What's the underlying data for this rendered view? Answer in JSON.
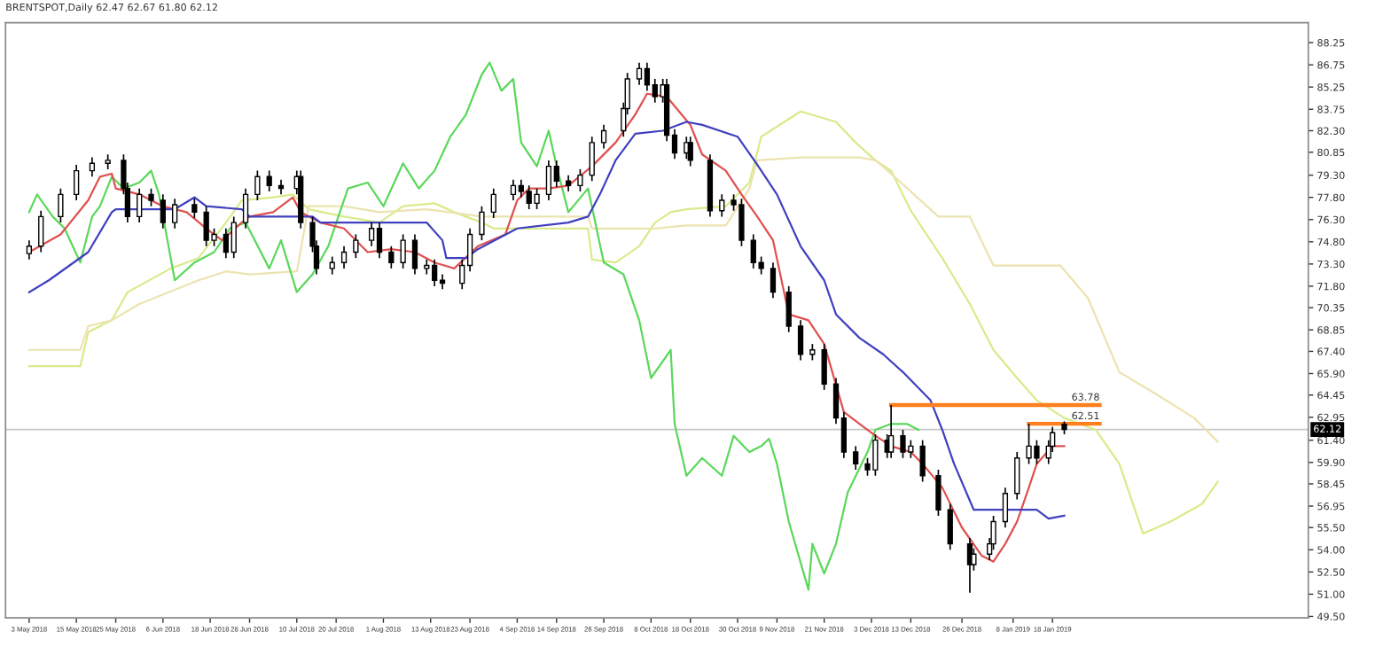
{
  "chart_data": {
    "type": "candlestick",
    "title": "BRENTSPOT,Daily 62.47 62.67 61.80 62.12",
    "x": [
      "2018-05-03",
      "2018-05-06",
      "2018-05-11",
      "2018-05-15",
      "2018-05-19",
      "2018-05-23",
      "2018-05-27",
      "2018-05-28",
      "2018-05-31",
      "2018-06-03",
      "2018-06-06",
      "2018-06-09",
      "2018-06-14",
      "2018-06-17",
      "2018-06-19",
      "2018-06-22",
      "2018-06-24",
      "2018-06-27",
      "2018-06-30",
      "2018-07-03",
      "2018-07-06",
      "2018-07-10",
      "2018-07-11",
      "2018-07-14",
      "2018-07-15",
      "2018-07-19",
      "2018-07-22",
      "2018-07-25",
      "2018-07-29",
      "2018-07-31",
      "2018-08-03",
      "2018-08-06",
      "2018-08-09",
      "2018-08-12",
      "2018-08-14",
      "2018-08-16",
      "2018-08-21",
      "2018-08-23",
      "2018-08-26",
      "2018-08-29",
      "2018-09-03",
      "2018-09-05",
      "2018-09-07",
      "2018-09-09",
      "2018-09-12",
      "2018-09-14",
      "2018-09-17",
      "2018-09-20",
      "2018-09-23",
      "2018-09-26",
      "2018-10-01",
      "2018-10-02",
      "2018-10-05",
      "2018-10-07",
      "2018-10-09",
      "2018-10-11",
      "2018-10-12",
      "2018-10-14",
      "2018-10-17",
      "2018-10-18",
      "2018-10-23",
      "2018-10-26",
      "2018-10-29",
      "2018-10-31",
      "2018-11-03",
      "2018-11-05",
      "2018-11-08",
      "2018-11-12",
      "2018-11-15",
      "2018-11-18",
      "2018-11-21",
      "2018-11-24",
      "2018-11-26",
      "2018-11-29",
      "2018-12-02",
      "2018-12-04",
      "2018-12-07",
      "2018-12-08",
      "2018-12-11",
      "2018-12-13",
      "2018-12-16",
      "2018-12-20",
      "2018-12-23",
      "2018-12-28",
      "2018-12-29",
      "2019-01-02",
      "2019-01-03",
      "2019-01-06",
      "2019-01-09",
      "2019-01-12",
      "2019-01-14",
      "2019-01-17",
      "2019-01-18",
      "2019-01-21"
    ],
    "ohlc": [
      [
        74.0,
        74.9,
        73.6,
        74.5
      ],
      [
        74.5,
        76.9,
        74.1,
        76.5
      ],
      [
        76.5,
        78.4,
        76.1,
        78.0
      ],
      [
        78.0,
        80.0,
        77.6,
        79.6
      ],
      [
        79.6,
        80.5,
        79.2,
        80.1
      ],
      [
        80.1,
        80.7,
        79.7,
        80.3
      ],
      [
        80.3,
        80.7,
        78.0,
        78.4
      ],
      [
        78.4,
        78.8,
        76.1,
        76.5
      ],
      [
        76.5,
        78.4,
        76.1,
        78.0
      ],
      [
        78.0,
        78.4,
        77.2,
        77.6
      ],
      [
        77.6,
        78.0,
        75.7,
        76.1
      ],
      [
        76.1,
        77.7,
        75.7,
        77.3
      ],
      [
        77.3,
        77.7,
        76.4,
        76.8
      ],
      [
        76.8,
        77.2,
        74.5,
        74.9
      ],
      [
        74.9,
        75.7,
        74.5,
        75.3
      ],
      [
        75.3,
        75.7,
        73.7,
        74.1
      ],
      [
        74.1,
        76.5,
        73.7,
        76.1
      ],
      [
        76.1,
        78.4,
        75.7,
        78.0
      ],
      [
        78.0,
        79.6,
        77.6,
        79.2
      ],
      [
        79.2,
        79.6,
        78.2,
        78.6
      ],
      [
        78.6,
        79.0,
        78.0,
        78.4
      ],
      [
        78.4,
        79.6,
        78.0,
        79.2
      ],
      [
        79.2,
        79.6,
        75.7,
        76.1
      ],
      [
        76.1,
        76.5,
        74.1,
        74.5
      ],
      [
        74.5,
        74.9,
        72.6,
        73.0
      ],
      [
        73.0,
        73.8,
        72.6,
        73.4
      ],
      [
        73.4,
        74.5,
        73.0,
        74.1
      ],
      [
        74.1,
        75.3,
        73.7,
        74.9
      ],
      [
        74.9,
        76.1,
        74.5,
        75.7
      ],
      [
        75.7,
        76.1,
        73.7,
        74.1
      ],
      [
        74.1,
        74.5,
        73.0,
        73.4
      ],
      [
        73.4,
        75.3,
        73.0,
        74.9
      ],
      [
        74.9,
        75.3,
        72.6,
        73.0
      ],
      [
        73.0,
        73.6,
        72.6,
        73.2
      ],
      [
        73.2,
        73.6,
        71.8,
        72.2
      ],
      [
        72.2,
        72.6,
        71.6,
        72.0
      ],
      [
        72.0,
        73.6,
        71.6,
        73.2
      ],
      [
        73.2,
        75.7,
        72.8,
        75.3
      ],
      [
        75.3,
        77.2,
        74.9,
        76.8
      ],
      [
        76.8,
        78.4,
        76.4,
        78.0
      ],
      [
        78.0,
        79.0,
        77.6,
        78.6
      ],
      [
        78.6,
        79.0,
        77.8,
        78.2
      ],
      [
        78.2,
        78.6,
        77.0,
        77.4
      ],
      [
        77.4,
        78.4,
        77.0,
        78.0
      ],
      [
        78.0,
        80.3,
        77.6,
        79.9
      ],
      [
        79.9,
        80.3,
        78.5,
        78.9
      ],
      [
        78.9,
        79.3,
        78.2,
        78.6
      ],
      [
        78.6,
        79.7,
        78.2,
        79.3
      ],
      [
        79.3,
        81.9,
        78.9,
        81.5
      ],
      [
        81.5,
        82.7,
        81.1,
        82.3
      ],
      [
        82.3,
        84.2,
        81.9,
        83.8
      ],
      [
        83.8,
        86.2,
        83.4,
        85.8
      ],
      [
        85.8,
        86.9,
        85.4,
        86.5
      ],
      [
        86.5,
        86.9,
        85.0,
        85.4
      ],
      [
        85.4,
        85.8,
        84.2,
        84.6
      ],
      [
        84.6,
        85.8,
        84.2,
        85.4
      ],
      [
        85.4,
        85.8,
        81.6,
        82.0
      ],
      [
        82.0,
        82.4,
        80.4,
        80.8
      ],
      [
        80.8,
        81.9,
        80.4,
        81.5
      ],
      [
        81.5,
        81.9,
        79.9,
        80.3
      ],
      [
        80.3,
        80.7,
        76.5,
        76.9
      ],
      [
        76.9,
        78.0,
        76.5,
        77.6
      ],
      [
        77.6,
        78.0,
        76.9,
        77.3
      ],
      [
        77.3,
        77.7,
        74.5,
        74.9
      ],
      [
        74.9,
        75.3,
        73.0,
        73.4
      ],
      [
        73.4,
        73.8,
        72.6,
        73.0
      ],
      [
        73.0,
        73.4,
        71.0,
        71.4
      ],
      [
        71.4,
        71.8,
        68.7,
        69.1
      ],
      [
        69.1,
        69.5,
        66.8,
        67.2
      ],
      [
        67.2,
        67.9,
        66.8,
        67.5
      ],
      [
        67.5,
        67.9,
        64.8,
        65.2
      ],
      [
        65.2,
        65.6,
        62.5,
        62.9
      ],
      [
        62.9,
        63.3,
        60.2,
        60.6
      ],
      [
        60.6,
        61.0,
        59.4,
        59.8
      ],
      [
        59.8,
        60.2,
        59.0,
        59.4
      ],
      [
        59.4,
        61.8,
        59.0,
        61.4
      ],
      [
        61.4,
        61.8,
        60.2,
        60.6
      ],
      [
        60.6,
        63.78,
        60.2,
        61.7
      ],
      [
        61.7,
        62.1,
        60.2,
        60.6
      ],
      [
        60.6,
        61.4,
        60.2,
        61.0
      ],
      [
        61.0,
        61.4,
        58.6,
        59.0
      ],
      [
        59.0,
        59.4,
        56.3,
        56.7
      ],
      [
        56.7,
        57.1,
        54.0,
        54.4
      ],
      [
        54.4,
        54.8,
        51.1,
        53.0
      ],
      [
        53.0,
        54.1,
        52.6,
        53.7
      ],
      [
        53.7,
        54.8,
        53.3,
        54.4
      ],
      [
        54.4,
        56.3,
        54.0,
        55.9
      ],
      [
        55.9,
        58.2,
        55.5,
        57.8
      ],
      [
        57.8,
        60.6,
        57.4,
        60.2
      ],
      [
        60.2,
        62.51,
        59.8,
        61.0
      ],
      [
        61.0,
        61.4,
        59.8,
        60.2
      ],
      [
        60.2,
        61.4,
        59.8,
        61.0
      ],
      [
        61.0,
        62.3,
        60.6,
        61.9
      ],
      [
        62.47,
        62.67,
        61.8,
        62.12
      ]
    ],
    "series": [
      {
        "type": "line",
        "color": "#d8eb8a",
        "x": [
          "2018-05-03",
          "2018-05-16",
          "2018-05-18",
          "2018-05-24",
          "2018-05-28",
          "2018-06-08",
          "2018-06-15",
          "2018-06-22",
          "2018-06-26",
          "2018-07-04",
          "2018-07-09",
          "2018-07-13",
          "2018-07-22",
          "2018-07-31",
          "2018-08-06",
          "2018-08-14",
          "2018-08-19",
          "2018-08-26",
          "2018-08-29",
          "2018-09-07",
          "2018-09-22",
          "2018-09-23",
          "2018-09-29",
          "2018-10-05",
          "2018-10-09",
          "2018-10-13",
          "2018-10-17",
          "2018-10-27",
          "2018-11-02",
          "2018-11-05",
          "2018-11-15",
          "2018-11-24",
          "2018-11-29",
          "2018-12-04",
          "2018-12-08",
          "2018-12-13",
          "2018-12-21",
          "2018-12-28",
          "2019-01-03",
          "2019-01-09",
          "2019-01-14",
          "2019-01-21",
          "2019-01-29",
          "2019-02-04",
          "2019-02-10",
          "2019-02-17",
          "2019-02-25",
          "2019-03-01"
        ],
        "values": [
          66.4,
          66.4,
          68.7,
          69.5,
          71.4,
          73.0,
          73.7,
          76.1,
          77.6,
          77.8,
          78.0,
          77.0,
          76.5,
          76.1,
          77.2,
          77.4,
          76.8,
          76.1,
          75.7,
          75.7,
          75.7,
          73.6,
          73.4,
          74.5,
          76.1,
          76.8,
          77.0,
          77.2,
          78.8,
          81.9,
          83.6,
          82.9,
          81.5,
          80.3,
          79.6,
          76.9,
          73.7,
          70.6,
          67.5,
          65.6,
          64.1,
          62.9,
          62.1,
          59.8,
          55.1,
          55.9,
          57.1,
          58.6
        ]
      },
      {
        "type": "line",
        "color": "#ece3b0",
        "x": [
          "2018-05-03",
          "2018-05-16",
          "2018-05-18",
          "2018-05-24",
          "2018-05-31",
          "2018-06-15",
          "2018-06-22",
          "2018-06-28",
          "2018-07-10",
          "2018-07-13",
          "2018-07-22",
          "2018-07-31",
          "2018-08-12",
          "2018-08-26",
          "2018-09-22",
          "2018-09-23",
          "2018-10-09",
          "2018-10-17",
          "2018-10-27",
          "2018-11-02",
          "2018-11-04",
          "2018-11-15",
          "2018-11-30",
          "2018-12-04",
          "2018-12-08",
          "2018-12-20",
          "2018-12-28",
          "2019-01-03",
          "2019-01-20",
          "2019-01-27",
          "2019-02-04",
          "2019-02-14",
          "2019-02-23",
          "2019-03-01"
        ],
        "values": [
          67.5,
          67.5,
          69.1,
          69.5,
          70.6,
          72.2,
          72.8,
          72.6,
          72.8,
          77.2,
          77.2,
          76.8,
          77.0,
          76.5,
          76.5,
          75.7,
          75.7,
          75.9,
          75.9,
          78.4,
          80.3,
          80.5,
          80.5,
          80.3,
          79.4,
          76.5,
          76.5,
          73.2,
          73.2,
          71.0,
          66.0,
          64.4,
          62.9,
          61.3
        ]
      },
      {
        "type": "line",
        "color": "#5ad85a",
        "x": [
          "2018-05-03",
          "2018-05-05",
          "2018-05-09",
          "2018-05-12",
          "2018-05-16",
          "2018-05-19",
          "2018-05-21",
          "2018-05-24",
          "2018-05-27",
          "2018-05-31",
          "2018-06-03",
          "2018-06-05",
          "2018-06-09",
          "2018-06-14",
          "2018-06-19",
          "2018-06-23",
          "2018-06-27",
          "2018-07-03",
          "2018-07-06",
          "2018-07-10",
          "2018-07-14",
          "2018-07-18",
          "2018-07-23",
          "2018-07-28",
          "2018-08-01",
          "2018-08-06",
          "2018-08-10",
          "2018-08-14",
          "2018-08-18",
          "2018-08-22",
          "2018-08-26",
          "2018-08-28",
          "2018-08-31",
          "2018-09-03",
          "2018-09-05",
          "2018-09-09",
          "2018-09-12",
          "2018-09-14",
          "2018-09-17",
          "2018-09-22",
          "2018-09-26",
          "2018-10-01",
          "2018-10-05",
          "2018-10-08",
          "2018-10-13",
          "2018-10-14",
          "2018-10-17",
          "2018-10-21",
          "2018-10-26",
          "2018-10-29",
          "2018-11-02",
          "2018-11-05",
          "2018-11-07",
          "2018-11-09",
          "2018-11-12",
          "2018-11-17",
          "2018-11-18",
          "2018-11-21",
          "2018-11-24",
          "2018-11-27",
          "2018-12-02",
          "2018-12-04",
          "2018-12-08",
          "2018-12-12",
          "2018-12-15"
        ],
        "values": [
          76.8,
          78.0,
          76.5,
          75.7,
          73.4,
          76.5,
          77.2,
          79.2,
          78.4,
          78.8,
          79.6,
          78.0,
          72.2,
          73.4,
          74.1,
          75.7,
          76.1,
          73.0,
          74.9,
          71.4,
          72.6,
          74.5,
          78.4,
          78.8,
          77.2,
          80.1,
          78.4,
          79.6,
          81.9,
          83.4,
          86.1,
          86.9,
          85.0,
          85.8,
          81.5,
          79.9,
          82.3,
          79.9,
          76.8,
          78.4,
          73.4,
          72.6,
          69.5,
          65.6,
          67.5,
          62.5,
          59.0,
          60.2,
          59.0,
          61.7,
          60.6,
          61.0,
          61.5,
          59.8,
          55.9,
          51.3,
          54.4,
          52.4,
          54.4,
          57.9,
          60.6,
          62.1,
          62.5,
          62.5,
          62.1
        ]
      },
      {
        "type": "line",
        "color": "#e05050",
        "x": [
          "2018-05-03",
          "2018-05-11",
          "2018-05-18",
          "2018-05-21",
          "2018-05-24",
          "2018-05-25",
          "2018-05-31",
          "2018-06-06",
          "2018-06-12",
          "2018-06-17",
          "2018-06-21",
          "2018-06-26",
          "2018-06-28",
          "2018-07-04",
          "2018-07-09",
          "2018-07-11",
          "2018-07-16",
          "2018-07-22",
          "2018-07-28",
          "2018-08-03",
          "2018-08-09",
          "2018-08-14",
          "2018-08-19",
          "2018-08-25",
          "2018-09-01",
          "2018-09-04",
          "2018-09-07",
          "2018-09-12",
          "2018-09-17",
          "2018-09-23",
          "2018-09-29",
          "2018-10-04",
          "2018-10-07",
          "2018-10-12",
          "2018-10-17",
          "2018-10-18",
          "2018-10-21",
          "2018-10-27",
          "2018-10-31",
          "2018-11-04",
          "2018-11-08",
          "2018-11-12",
          "2018-11-17",
          "2018-11-21",
          "2018-11-26",
          "2018-11-30",
          "2018-12-04",
          "2018-12-08",
          "2018-12-13",
          "2018-12-16",
          "2018-12-21",
          "2018-12-26",
          "2018-12-31",
          "2019-01-03",
          "2019-01-06",
          "2019-01-09",
          "2019-01-12",
          "2019-01-14",
          "2019-01-18",
          "2019-01-21"
        ],
        "values": [
          74.1,
          75.3,
          77.6,
          79.2,
          79.4,
          78.4,
          78.0,
          77.2,
          76.8,
          75.7,
          74.9,
          76.1,
          76.5,
          76.8,
          77.8,
          76.8,
          76.1,
          75.7,
          74.1,
          74.3,
          74.1,
          73.4,
          73.0,
          74.5,
          75.3,
          77.6,
          78.4,
          78.4,
          78.6,
          79.9,
          81.5,
          83.4,
          84.8,
          84.6,
          83.0,
          82.7,
          80.7,
          79.6,
          78.0,
          76.5,
          74.9,
          69.9,
          69.5,
          67.9,
          63.3,
          62.5,
          61.7,
          61.0,
          60.6,
          59.8,
          58.2,
          55.5,
          53.6,
          53.2,
          54.4,
          55.9,
          58.2,
          59.8,
          61.0,
          61.0
        ]
      },
      {
        "type": "line",
        "color": "#4040c0",
        "x": [
          "2018-05-03",
          "2018-05-08",
          "2018-05-18",
          "2018-05-24",
          "2018-05-25",
          "2018-06-09",
          "2018-06-14",
          "2018-06-17",
          "2018-06-26",
          "2018-06-28",
          "2018-07-14",
          "2018-07-16",
          "2018-08-12",
          "2018-08-16",
          "2018-08-17",
          "2018-08-22",
          "2018-08-25",
          "2018-09-04",
          "2018-09-17",
          "2018-09-22",
          "2018-09-25",
          "2018-09-29",
          "2018-10-04",
          "2018-10-11",
          "2018-10-17",
          "2018-10-21",
          "2018-10-30",
          "2018-11-04",
          "2018-11-09",
          "2018-11-15",
          "2018-11-21",
          "2018-11-24",
          "2018-11-30",
          "2018-12-06",
          "2018-12-11",
          "2018-12-18",
          "2018-12-21",
          "2018-12-24",
          "2018-12-29",
          "2019-01-03",
          "2019-01-14",
          "2019-01-17",
          "2019-01-21"
        ],
        "values": [
          71.4,
          72.2,
          74.1,
          76.8,
          77.0,
          77.0,
          77.8,
          77.2,
          77.0,
          76.5,
          76.5,
          76.1,
          76.1,
          74.9,
          73.7,
          73.7,
          74.3,
          75.7,
          76.1,
          76.5,
          78.0,
          80.3,
          82.1,
          82.3,
          82.9,
          82.7,
          81.9,
          80.0,
          78.0,
          74.5,
          72.2,
          69.9,
          68.3,
          67.2,
          66.0,
          64.1,
          62.1,
          59.8,
          56.7,
          56.7,
          56.7,
          56.1,
          56.3
        ]
      },
      {
        "type": "line",
        "color": "#ff7f1e",
        "x": [
          "2018-12-08",
          "2019-01-30"
        ],
        "values": [
          63.78,
          63.78
        ]
      },
      {
        "type": "line",
        "color": "#ff7f1e",
        "x": [
          "2019-01-12",
          "2019-01-30"
        ],
        "values": [
          62.51,
          62.51
        ]
      }
    ],
    "annotations": [
      {
        "text": "63.78",
        "x": "2019-01-30",
        "y": 63.78
      },
      {
        "text": "62.51",
        "x": "2019-01-30",
        "y": 62.51
      }
    ],
    "ref_lines": [
      {
        "axis": "y",
        "value": 62.12,
        "label": "62.12",
        "color": "#c8c8c8"
      }
    ],
    "xlim": [
      "2018-04-27",
      "2019-03-24"
    ],
    "ylim": [
      49.4,
      89.6
    ],
    "xticks": [
      {
        "value": "2018-05-03",
        "label": "3 May 2018"
      },
      {
        "value": "2018-05-15",
        "label": "15 May 2018"
      },
      {
        "value": "2018-05-25",
        "label": "25 May 2018"
      },
      {
        "value": "2018-06-06",
        "label": "6 Jun 2018"
      },
      {
        "value": "2018-06-18",
        "label": "18 Jun 2018"
      },
      {
        "value": "2018-06-28",
        "label": "28 Jun 2018"
      },
      {
        "value": "2018-07-10",
        "label": "10 Jul 2018"
      },
      {
        "value": "2018-07-20",
        "label": "20 Jul 2018"
      },
      {
        "value": "2018-08-01",
        "label": "1 Aug 2018"
      },
      {
        "value": "2018-08-13",
        "label": "13 Aug 2018"
      },
      {
        "value": "2018-08-23",
        "label": "23 Aug 2018"
      },
      {
        "value": "2018-09-04",
        "label": "4 Sep 2018"
      },
      {
        "value": "2018-09-14",
        "label": "14 Sep 2018"
      },
      {
        "value": "2018-09-26",
        "label": "26 Sep 2018"
      },
      {
        "value": "2018-10-08",
        "label": "8 Oct 2018"
      },
      {
        "value": "2018-10-18",
        "label": "18 Oct 2018"
      },
      {
        "value": "2018-10-30",
        "label": "30 Oct 2018"
      },
      {
        "value": "2018-11-09",
        "label": "9 Nov 2018"
      },
      {
        "value": "2018-11-21",
        "label": "21 Nov 2018"
      },
      {
        "value": "2018-12-03",
        "label": "3 Dec 2018"
      },
      {
        "value": "2018-12-13",
        "label": "13 Dec 2018"
      },
      {
        "value": "2018-12-26",
        "label": "26 Dec 2018"
      },
      {
        "value": "2019-01-08",
        "label": "8 Jan 2019"
      },
      {
        "value": "2019-01-18",
        "label": "18 Jan 2019"
      }
    ],
    "yticks": [
      {
        "value": 49.5,
        "label": "49.50"
      },
      {
        "value": 51.0,
        "label": "51.00"
      },
      {
        "value": 52.5,
        "label": "52.50"
      },
      {
        "value": 54.0,
        "label": "54.00"
      },
      {
        "value": 55.5,
        "label": "55.50"
      },
      {
        "value": 56.95,
        "label": "56.95"
      },
      {
        "value": 58.45,
        "label": "58.45"
      },
      {
        "value": 59.9,
        "label": "59.90"
      },
      {
        "value": 61.4,
        "label": "61.40"
      },
      {
        "value": 62.95,
        "label": "62.95"
      },
      {
        "value": 64.45,
        "label": "64.45"
      },
      {
        "value": 65.9,
        "label": "65.90"
      },
      {
        "value": 67.4,
        "label": "67.40"
      },
      {
        "value": 68.85,
        "label": "68.85"
      },
      {
        "value": 70.35,
        "label": "70.35"
      },
      {
        "value": 71.8,
        "label": "71.80"
      },
      {
        "value": 73.3,
        "label": "73.30"
      },
      {
        "value": 74.8,
        "label": "74.80"
      },
      {
        "value": 76.3,
        "label": "76.30"
      },
      {
        "value": 77.8,
        "label": "77.80"
      },
      {
        "value": 79.3,
        "label": "79.30"
      },
      {
        "value": 80.85,
        "label": "80.85"
      },
      {
        "value": 82.3,
        "label": "82.30"
      },
      {
        "value": 83.75,
        "label": "83.75"
      },
      {
        "value": 85.25,
        "label": "85.25"
      },
      {
        "value": 86.75,
        "label": "86.75"
      },
      {
        "value": 88.25,
        "label": "88.25"
      }
    ],
    "grid": false,
    "legend": false
  }
}
